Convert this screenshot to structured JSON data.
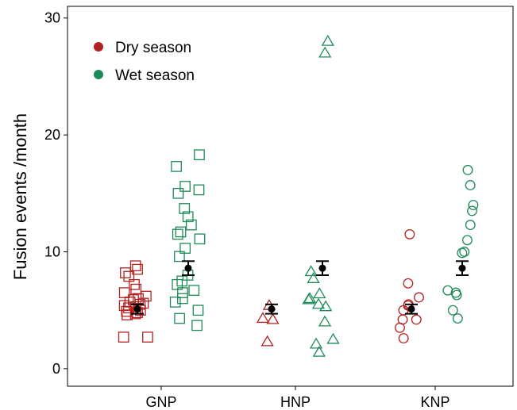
{
  "chart_data": {
    "type": "scatter",
    "ylabel": "Fusion events /month",
    "xlabel": "",
    "categories": [
      "GNP",
      "HNP",
      "KNP"
    ],
    "y_ticks": [
      0,
      10,
      20,
      30
    ],
    "ylim": [
      -1.5,
      31
    ],
    "grid": false,
    "legend_position": "top-left",
    "colors": {
      "dry": "#b22222",
      "wet": "#1e8a57",
      "mean": "#000000"
    },
    "markers": {
      "GNP": "square",
      "HNP": "triangle",
      "KNP": "circle"
    },
    "series": [
      {
        "name": "Dry season",
        "key": "dry",
        "color": "#b22222"
      },
      {
        "name": "Wet season",
        "key": "wet",
        "color": "#1e8a57"
      }
    ],
    "points": {
      "GNP": {
        "dry": [
          8.8,
          8.5,
          8.2,
          7.9,
          7.2,
          6.8,
          6.5,
          6.2,
          6.0,
          5.9,
          5.7,
          5.6,
          5.5,
          5.4,
          5.3,
          5.2,
          5.0,
          4.9,
          4.8,
          4.7,
          4.6,
          2.7,
          2.7
        ],
        "wet": [
          18.3,
          17.3,
          15.6,
          15.3,
          15.0,
          13.7,
          13.0,
          12.3,
          11.7,
          11.5,
          11.1,
          10.3,
          9.6,
          8.0,
          7.5,
          7.2,
          6.7,
          6.5,
          6.0,
          5.7,
          5.0,
          4.3,
          3.7
        ]
      },
      "HNP": {
        "dry": [
          5.4,
          4.3,
          4.2,
          2.3
        ],
        "wet": [
          28.0,
          27.0,
          8.3,
          7.7,
          6.4,
          6.0,
          5.9,
          5.5,
          5.3,
          4.0,
          2.5,
          2.1,
          1.4
        ]
      },
      "KNP": {
        "dry": [
          11.5,
          7.3,
          6.1,
          5.5,
          5.4,
          5.0,
          4.2,
          4.2,
          3.5,
          2.6
        ],
        "wet": [
          17.0,
          15.7,
          14.0,
          13.5,
          12.3,
          11.0,
          10.0,
          9.9,
          6.7,
          6.5,
          6.3,
          5.0,
          4.3
        ]
      }
    },
    "means": {
      "GNP": {
        "dry": {
          "mean": 5.1,
          "lo": 4.7,
          "hi": 5.5
        },
        "wet": {
          "mean": 8.6,
          "lo": 8.0,
          "hi": 9.2
        }
      },
      "HNP": {
        "dry": {
          "mean": 5.1,
          "lo": 4.7,
          "hi": 5.5
        },
        "wet": {
          "mean": 8.6,
          "lo": 8.0,
          "hi": 9.2
        }
      },
      "KNP": {
        "dry": {
          "mean": 5.1,
          "lo": 4.7,
          "hi": 5.5
        },
        "wet": {
          "mean": 8.6,
          "lo": 8.0,
          "hi": 9.2
        }
      }
    }
  }
}
